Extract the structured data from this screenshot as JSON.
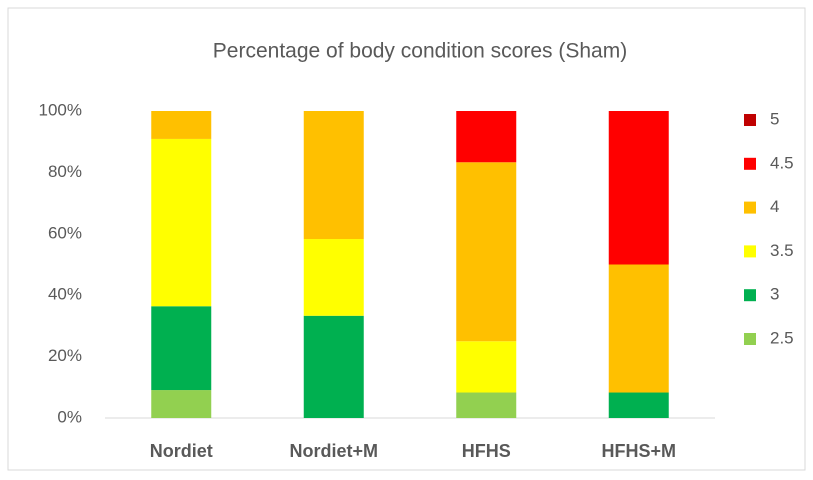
{
  "chart_data": {
    "type": "stacked_bar",
    "title": "Percentage of body condition scores (Sham)",
    "categories": [
      "Nordiet",
      "Nordiet+M",
      "HFHS",
      "HFHS+M"
    ],
    "series": [
      {
        "name": "2.5",
        "color": "#92d050",
        "values": [
          9.1,
          0,
          8.3,
          0
        ]
      },
      {
        "name": "3",
        "color": "#00b050",
        "values": [
          27.3,
          33.3,
          0,
          8.3
        ]
      },
      {
        "name": "3.5",
        "color": "#ffff00",
        "values": [
          54.5,
          25,
          16.7,
          0
        ]
      },
      {
        "name": "4",
        "color": "#ffc000",
        "values": [
          9.1,
          41.7,
          58.3,
          41.7
        ]
      },
      {
        "name": "4.5",
        "color": "#ff0000",
        "values": [
          0,
          0,
          16.7,
          50
        ]
      },
      {
        "name": "5",
        "color": "#c00000",
        "values": [
          0,
          0,
          0,
          0
        ]
      }
    ],
    "ylim": [
      0,
      100
    ],
    "yticks": [
      {
        "value": 0,
        "label": "0%"
      },
      {
        "value": 20,
        "label": "20%"
      },
      {
        "value": 40,
        "label": "40%"
      },
      {
        "value": 60,
        "label": "60%"
      },
      {
        "value": 80,
        "label": "80%"
      },
      {
        "value": 100,
        "label": "100%"
      }
    ],
    "legend": "right"
  }
}
